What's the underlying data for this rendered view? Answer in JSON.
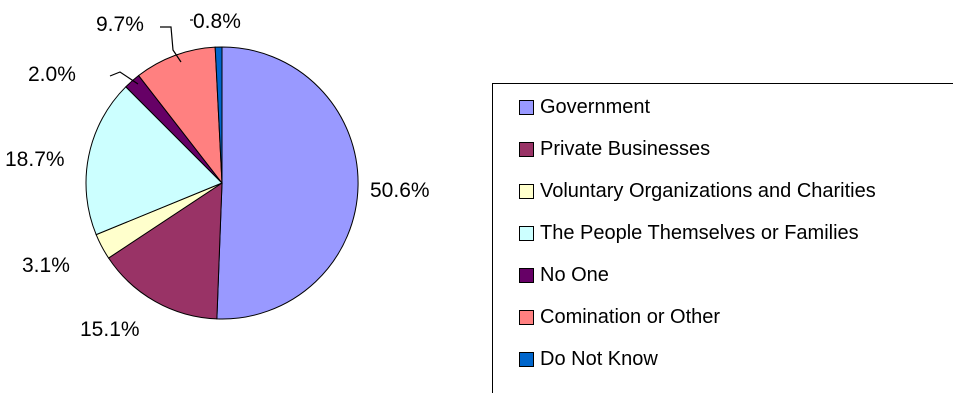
{
  "chart_data": {
    "type": "pie",
    "title": "",
    "start_angle_deg": 0,
    "direction": "clockwise",
    "legend_position": "right",
    "slices": [
      {
        "name": "Government",
        "value": 50.6,
        "label": "50.6%",
        "color": "#9999ff"
      },
      {
        "name": "Private Businesses",
        "value": 15.1,
        "label": "15.1%",
        "color": "#993366"
      },
      {
        "name": "Voluntary Organizations and Charities",
        "value": 3.1,
        "label": "3.1%",
        "color": "#ffffcc"
      },
      {
        "name": "The People Themselves or Families",
        "value": 18.7,
        "label": "18.7%",
        "color": "#ccffff"
      },
      {
        "name": "No One",
        "value": 2.0,
        "label": "2.0%",
        "color": "#660066"
      },
      {
        "name": "Comination or Other",
        "value": 9.7,
        "label": "9.7%",
        "color": "#ff8080"
      },
      {
        "name": "Do Not Know",
        "value": 0.8,
        "label": "0.8%",
        "color": "#0066cc"
      }
    ]
  }
}
